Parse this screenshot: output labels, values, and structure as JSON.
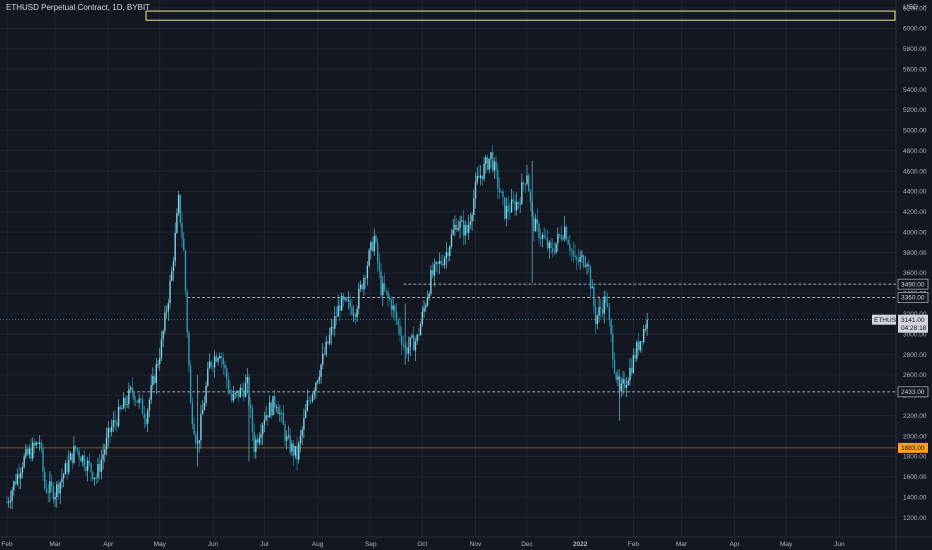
{
  "chart_data": {
    "type": "candlestick",
    "title": "ETHUSD Perpetual Contract, 1D, BYBIT",
    "currency": "USD",
    "ylim": [
      1050,
      6280
    ],
    "y_ticks": [
      1200,
      1400,
      1600,
      1800,
      2000,
      2200,
      2400,
      2600,
      2800,
      3000,
      3200,
      3400,
      3600,
      3800,
      4000,
      4200,
      4400,
      4600,
      4800,
      5000,
      5200,
      5400,
      5600,
      5800,
      6000,
      6200
    ],
    "x_ticks": [
      "Feb",
      "Mar",
      "Apr",
      "May",
      "Jun",
      "Jul",
      "Aug",
      "Sep",
      "Oct",
      "Nov",
      "Dec",
      "2022",
      "Feb",
      "Mar",
      "Apr",
      "May",
      "Jun"
    ],
    "price_series": [
      {
        "date": "2021-02-01",
        "close": 1350
      },
      {
        "date": "2021-02-10",
        "close": 1750
      },
      {
        "date": "2021-02-20",
        "close": 1950
      },
      {
        "date": "2021-02-23",
        "close": 1500
      },
      {
        "date": "2021-03-01",
        "close": 1450
      },
      {
        "date": "2021-03-13",
        "close": 1880
      },
      {
        "date": "2021-03-25",
        "close": 1600
      },
      {
        "date": "2021-04-02",
        "close": 2050
      },
      {
        "date": "2021-04-15",
        "close": 2450
      },
      {
        "date": "2021-04-23",
        "close": 2200
      },
      {
        "date": "2021-05-02",
        "close": 2900
      },
      {
        "date": "2021-05-08",
        "close": 3600
      },
      {
        "date": "2021-05-12",
        "close": 4300
      },
      {
        "date": "2021-05-15",
        "close": 3800
      },
      {
        "date": "2021-05-19",
        "close": 2300
      },
      {
        "date": "2021-05-23",
        "close": 1900
      },
      {
        "date": "2021-05-30",
        "close": 2700
      },
      {
        "date": "2021-06-05",
        "close": 2850
      },
      {
        "date": "2021-06-12",
        "close": 2350
      },
      {
        "date": "2021-06-21",
        "close": 2500
      },
      {
        "date": "2021-06-25",
        "close": 1900
      },
      {
        "date": "2021-07-01",
        "close": 2200
      },
      {
        "date": "2021-07-08",
        "close": 2350
      },
      {
        "date": "2021-07-14",
        "close": 1950
      },
      {
        "date": "2021-07-20",
        "close": 1800
      },
      {
        "date": "2021-07-26",
        "close": 2300
      },
      {
        "date": "2021-08-05",
        "close": 2800
      },
      {
        "date": "2021-08-14",
        "close": 3300
      },
      {
        "date": "2021-08-23",
        "close": 3250
      },
      {
        "date": "2021-09-03",
        "close": 3950
      },
      {
        "date": "2021-09-07",
        "close": 3450
      },
      {
        "date": "2021-09-13",
        "close": 3300
      },
      {
        "date": "2021-09-21",
        "close": 2850
      },
      {
        "date": "2021-09-28",
        "close": 2950
      },
      {
        "date": "2021-10-06",
        "close": 3550
      },
      {
        "date": "2021-10-15",
        "close": 3800
      },
      {
        "date": "2021-10-21",
        "close": 4100
      },
      {
        "date": "2021-10-27",
        "close": 4000
      },
      {
        "date": "2021-11-02",
        "close": 4500
      },
      {
        "date": "2021-11-10",
        "close": 4750
      },
      {
        "date": "2021-11-18",
        "close": 4200
      },
      {
        "date": "2021-11-26",
        "close": 4300
      },
      {
        "date": "2021-12-01",
        "close": 4600
      },
      {
        "date": "2021-12-04",
        "close": 4100
      },
      {
        "date": "2021-12-10",
        "close": 3950
      },
      {
        "date": "2021-12-15",
        "close": 3800
      },
      {
        "date": "2021-12-23",
        "close": 4050
      },
      {
        "date": "2021-12-29",
        "close": 3700
      },
      {
        "date": "2022-01-05",
        "close": 3750
      },
      {
        "date": "2022-01-10",
        "close": 3150
      },
      {
        "date": "2022-01-16",
        "close": 3350
      },
      {
        "date": "2022-01-21",
        "close": 2700
      },
      {
        "date": "2022-01-24",
        "close": 2400
      },
      {
        "date": "2022-01-30",
        "close": 2650
      },
      {
        "date": "2022-02-02",
        "close": 2800
      },
      {
        "date": "2022-02-06",
        "close": 3000
      },
      {
        "date": "2022-02-09",
        "close": 3141
      }
    ],
    "horizontal_levels": [
      {
        "label": "3490.00",
        "value": 3490,
        "style": "dashed",
        "color": "#d1d4dc"
      },
      {
        "label": "3360.00",
        "value": 3360,
        "style": "dashed",
        "color": "#d1d4dc"
      },
      {
        "label": "2433.00",
        "value": 2433,
        "style": "dashed",
        "color": "#d1d4dc"
      },
      {
        "label": "1883.00",
        "value": 1883,
        "style": "solid",
        "color": "#f7a21b"
      }
    ],
    "zone": {
      "from": "2021-04-23",
      "top": 6170,
      "bottom": 6080,
      "color": "#f4e4a2"
    },
    "last_price": {
      "symbol": "ETHUSD",
      "price": "3141.00",
      "countdown": "04:28:18"
    }
  }
}
